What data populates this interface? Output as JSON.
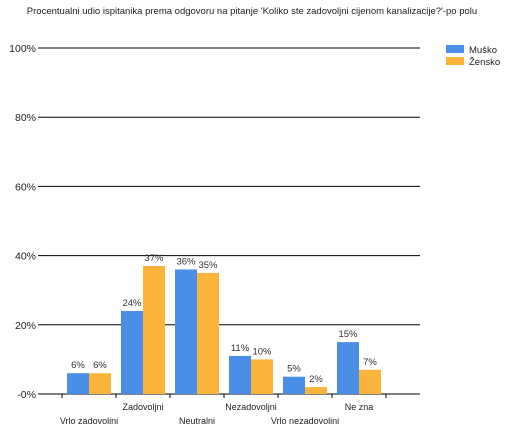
{
  "chart_data": {
    "type": "bar",
    "title": "Procentualni udio ispitanika prema odgovoru na pitanje 'Koliko ste zadovoljni cijenom kanalizacije?'-po polu",
    "categories": [
      "Vrlo zadovoljni",
      "Zadovoljni",
      "Neutralni",
      "Nezadovoljni",
      "Vrlo nezadovoljni",
      "Ne zna"
    ],
    "series": [
      {
        "name": "Muško",
        "values": [
          6,
          24,
          36,
          11,
          5,
          15
        ],
        "labels": [
          "6%",
          "24%",
          "36%",
          "11%",
          "5%",
          "15%"
        ],
        "color": "#4a8ee8"
      },
      {
        "name": "Žensko",
        "values": [
          6,
          37,
          35,
          10,
          2,
          7
        ],
        "labels": [
          "6%",
          "37%",
          "35%",
          "10%",
          "2%",
          "7%"
        ],
        "color": "#fbb43b"
      }
    ],
    "ylim": [
      0,
      100
    ],
    "yticks": [
      0,
      20,
      40,
      60,
      80,
      100
    ],
    "ytick_labels": [
      "-0%",
      "20%",
      "40%",
      "60%",
      "80%",
      "100%"
    ],
    "grid": true,
    "legend": "top-right"
  }
}
